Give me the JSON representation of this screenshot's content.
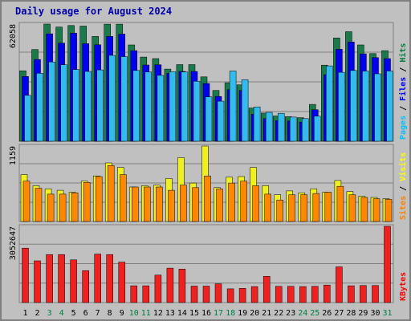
{
  "chart_data": {
    "type": "bar",
    "title": "Daily usage for August 2024",
    "categories": [
      "1",
      "2",
      "3",
      "4",
      "5",
      "6",
      "7",
      "8",
      "9",
      "10",
      "11",
      "12",
      "13",
      "14",
      "15",
      "16",
      "17",
      "18",
      "19",
      "20",
      "21",
      "22",
      "23",
      "24",
      "25",
      "26",
      "27",
      "28",
      "29",
      "30",
      "31"
    ],
    "weekend_days": [
      "3",
      "4",
      "10",
      "11",
      "17",
      "18",
      "24",
      "25",
      "31"
    ],
    "panels": [
      {
        "id": "hits-files-pages",
        "ymax": 62058,
        "ymax_label": "62058",
        "legend": [
          {
            "text": "Pages",
            "color": "#00c0ff"
          },
          {
            "text": " / ",
            "color": "#000000"
          },
          {
            "text": "Files",
            "color": "#0000ff"
          },
          {
            "text": " / ",
            "color": "#000000"
          },
          {
            "text": "Hits",
            "color": "#008040"
          }
        ],
        "series": [
          {
            "name": "Hits",
            "color": "#1a7a4a",
            "values": [
              37300,
              48600,
              62058,
              60500,
              61300,
              61000,
              55500,
              62000,
              62000,
              51000,
              44600,
              43800,
              38200,
              40600,
              40600,
              34100,
              26900,
              31000,
              29900,
              17600,
              14900,
              13400,
              13000,
              12500,
              19500,
              40300,
              54700,
              58000,
              51000,
              46400,
              48000
            ]
          },
          {
            "name": "Files",
            "color": "#0000ee",
            "values": [
              34300,
              43300,
              56900,
              52000,
              57300,
              51700,
              51100,
              55500,
              56800,
              48000,
              40400,
              40500,
              35900,
              37000,
              37000,
              30600,
              23700,
              27300,
              26900,
              14300,
              12000,
              10900,
              10700,
              10100,
              16700,
              35300,
              48700,
              52600,
              46300,
              44300,
              43800
            ]
          },
          {
            "name": "Pages",
            "color": "#33bbee",
            "values": [
              24300,
              36000,
              42000,
              40500,
              38000,
              37000,
              37800,
              45500,
              44800,
              37500,
              36700,
              34900,
              36800,
              36700,
              31800,
              23500,
              21200,
              37200,
              32600,
              18200,
              15300,
              14800,
              12800,
              12000,
              13300,
              39900,
              36500,
              37500,
              37200,
              35700,
              37200
            ]
          }
        ]
      },
      {
        "id": "visits-sites",
        "ymax": 1159,
        "ymax_label": "1159",
        "legend": [
          {
            "text": "Sites",
            "color": "#ff8000"
          },
          {
            "text": " / ",
            "color": "#000000"
          },
          {
            "text": "Visits",
            "color": "#ffff00"
          }
        ],
        "series": [
          {
            "name": "Visits",
            "color": "#f0f020",
            "values": [
              720,
              550,
              500,
              480,
              450,
              620,
              700,
              900,
              830,
              530,
              550,
              560,
              660,
              980,
              590,
              1159,
              520,
              680,
              690,
              830,
              550,
              410,
              470,
              440,
              500,
              450,
              630,
              460,
              390,
              370,
              350
            ]
          },
          {
            "name": "Sites",
            "color": "#ff8800",
            "values": [
              620,
              510,
              420,
              420,
              440,
              600,
              690,
              860,
              720,
              530,
              530,
              530,
              480,
              560,
              520,
              700,
              500,
              590,
              620,
              550,
              420,
              330,
              410,
              410,
              430,
              450,
              540,
              410,
              370,
              350,
              340
            ]
          }
        ]
      },
      {
        "id": "kbytes",
        "ymax": 3052647,
        "ymax_label": "3052647",
        "legend": [
          {
            "text": "KBytes",
            "color": "#ff0000"
          }
        ],
        "series": [
          {
            "name": "KBytes",
            "color": "#ee2020",
            "values": [
              2180000,
              1670000,
              1920000,
              1920000,
              1710000,
              1280000,
              1940000,
              1920000,
              1620000,
              670000,
              670000,
              1100000,
              1380000,
              1340000,
              660000,
              660000,
              750000,
              550000,
              570000,
              640000,
              1050000,
              650000,
              650000,
              640000,
              650000,
              700000,
              1430000,
              670000,
              680000,
              680000,
              3052647
            ]
          }
        ]
      }
    ],
    "grid": true
  }
}
